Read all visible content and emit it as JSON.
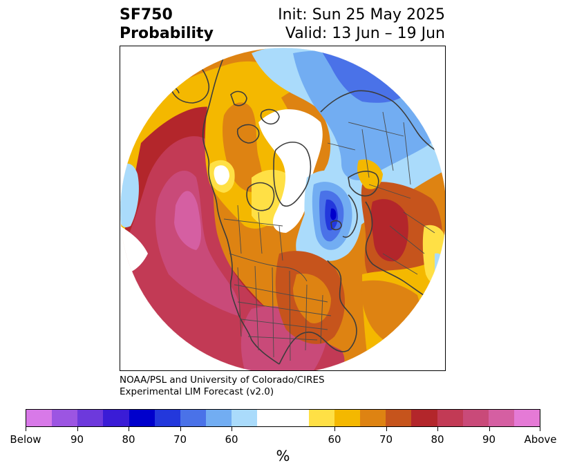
{
  "header": {
    "variable": "SF750",
    "quantity": "Probability",
    "init": "Init: Sun 25 May 2025",
    "valid": "Valid: 13 Jun – 19 Jun"
  },
  "credit": {
    "line1": "NOAA/PSL and University of Colorado/CIRES",
    "line2": "Experimental LIM Forecast (v2.0)"
  },
  "colorbar": {
    "colors": [
      "#d879e8",
      "#9c55e2",
      "#6d39dc",
      "#3a1cd6",
      "#0000cc",
      "#2338dc",
      "#4a72e8",
      "#72adf2",
      "#aadbfb",
      "#ffffff",
      "#ffffff",
      "#ffe045",
      "#f4b800",
      "#de8312",
      "#c6541c",
      "#b3262b",
      "#c23a55",
      "#c94a79",
      "#d55fa2",
      "#e57ad6"
    ],
    "tick_labels": [
      "Below",
      "90",
      "80",
      "70",
      "60",
      "60",
      "70",
      "80",
      "90",
      "Above"
    ],
    "unit": "%"
  }
}
